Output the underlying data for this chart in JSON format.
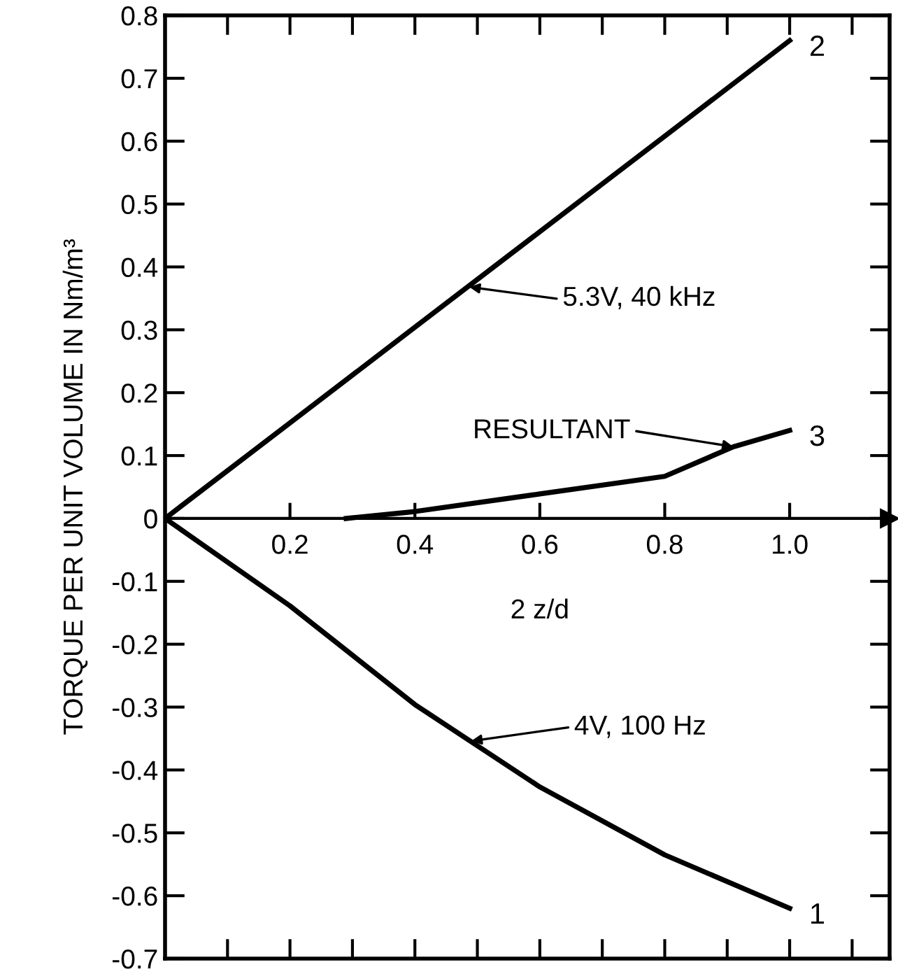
{
  "chart_data": {
    "type": "line",
    "xlabel": "2 z/d",
    "ylabel": "TORQUE PER UNIT VOLUME IN Nm/m³",
    "xlim": [
      0,
      1.16
    ],
    "ylim": [
      -0.7,
      0.8
    ],
    "xticks": [
      {
        "value": 0.1,
        "label": null
      },
      0.2,
      {
        "value": 0.3,
        "label": null
      },
      0.4,
      {
        "value": 0.5,
        "label": null
      },
      0.6,
      {
        "value": 0.7,
        "label": null
      },
      0.8,
      {
        "value": 0.9,
        "label": null
      },
      {
        "value": 1.0,
        "label": "1.0"
      },
      {
        "value": 1.1,
        "label": null
      }
    ],
    "yticks": [
      -0.7,
      -0.6,
      -0.5,
      -0.4,
      -0.3,
      -0.2,
      -0.1,
      0,
      0.1,
      0.2,
      0.3,
      0.4,
      0.5,
      0.6,
      0.7,
      0.8
    ],
    "grid": false,
    "legend": "right",
    "marker": "none",
    "line_style": "solid",
    "series": [
      {
        "name": "2",
        "color": "#000000",
        "x": [
          0,
          0.2,
          0.4,
          0.6,
          0.8,
          1.0
        ],
        "values": [
          0,
          0.152,
          0.304,
          0.456,
          0.608,
          0.76
        ]
      },
      {
        "name": "3",
        "color": "#000000",
        "x": [
          0.29,
          0.4,
          0.6,
          0.8,
          0.91,
          1.0
        ],
        "values": [
          0,
          0.011,
          0.039,
          0.067,
          0.114,
          0.14
        ]
      },
      {
        "name": "1",
        "color": "#000000",
        "x": [
          0,
          0.2,
          0.4,
          0.6,
          0.8,
          1.0
        ],
        "values": [
          0,
          -0.139,
          -0.296,
          -0.427,
          -0.535,
          -0.62
        ]
      }
    ],
    "annotations": [
      {
        "text": "5.3V, 40 kHz",
        "x": 0.487,
        "y": 0.368
      },
      {
        "text": "RESULTANT",
        "x": 0.91,
        "y": 0.114
      },
      {
        "text": "4V, 100 Hz",
        "x": 0.49,
        "y": -0.354
      }
    ]
  }
}
